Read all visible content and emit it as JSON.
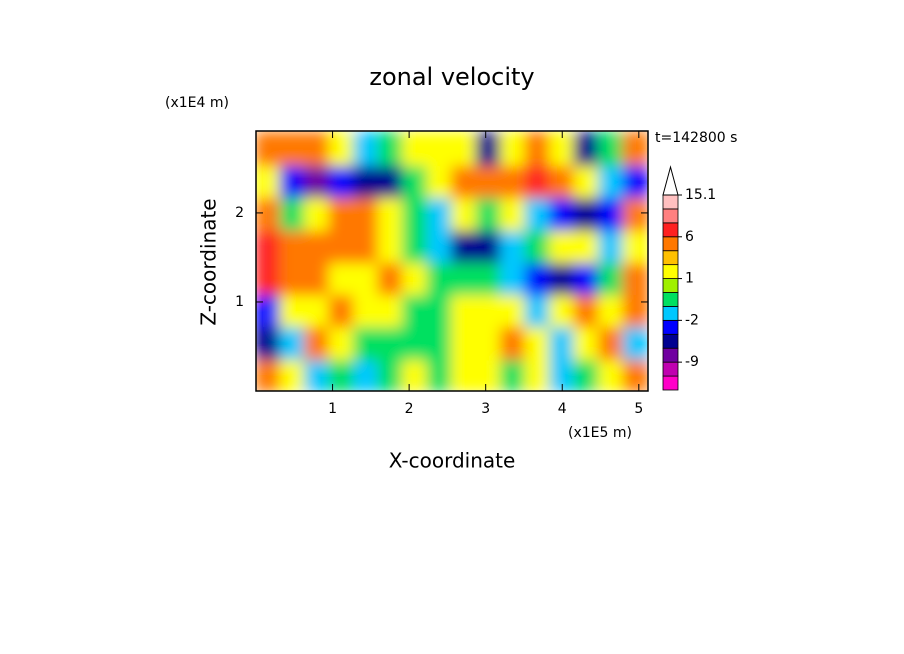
{
  "chart_data": {
    "type": "contour",
    "title": "zonal velocity",
    "x_label": "X-coordinate",
    "y_label": "Z-coordinate",
    "x_unit": "(x1E5 m)",
    "y_unit": "(x1E4 m)",
    "time_label": "t=142800 s",
    "xlim": [
      0,
      5.12
    ],
    "ylim": [
      0,
      2.92
    ],
    "xticks": [
      1,
      2,
      3,
      4,
      5
    ],
    "yticks": [
      1,
      2
    ],
    "x": [
      0.16,
      0.48,
      0.8,
      1.12,
      1.44,
      1.76,
      2.08,
      2.4,
      2.72,
      3.04,
      3.36,
      3.68,
      4.0,
      4.32,
      4.64,
      4.96
    ],
    "z": [
      0.18,
      0.54,
      0.91,
      1.27,
      1.63,
      1.99,
      2.36,
      2.72
    ],
    "values": [
      [
        5,
        1.5,
        -1.5,
        -0.5,
        -1.5,
        -0.5,
        1.5,
        -0.5,
        1.5,
        1.5,
        -0.5,
        1.5,
        -1.5,
        -0.5,
        1.5,
        5
      ],
      [
        -5,
        -1.5,
        5,
        1.5,
        -0.5,
        -0.5,
        -0.5,
        -0.5,
        1.5,
        1.5,
        5,
        1.5,
        -1.5,
        1.5,
        5,
        -1.5
      ],
      [
        -3,
        1.5,
        1.5,
        5,
        1.5,
        1.5,
        -0.5,
        -0.5,
        1.5,
        1.5,
        1.5,
        -1.5,
        1.5,
        5,
        1.5,
        5
      ],
      [
        7,
        5,
        5,
        1.5,
        1.5,
        5,
        1.5,
        -0.5,
        -0.5,
        -0.5,
        -1.5,
        -3,
        -5,
        -3,
        -0.5,
        5
      ],
      [
        7,
        5,
        5,
        5,
        5,
        1.5,
        -0.5,
        -1.5,
        -5,
        -5,
        -1.5,
        -0.5,
        1.5,
        1.5,
        -1.5,
        1.5
      ],
      [
        5,
        -0.5,
        1.5,
        5,
        5,
        1.5,
        -0.5,
        -1.5,
        1.5,
        -0.5,
        1.5,
        -1.5,
        -3,
        -5,
        -3,
        5
      ],
      [
        1.5,
        -3,
        -7,
        -3,
        -5,
        -5,
        -0.5,
        1.5,
        5,
        5,
        5,
        7,
        5,
        1.5,
        -1.5,
        -3
      ],
      [
        5,
        5,
        5,
        1.5,
        -1.5,
        -0.5,
        1.5,
        1.5,
        1.5,
        -5,
        1.5,
        5,
        1.5,
        -5,
        -0.5,
        5
      ]
    ],
    "colorbar": {
      "levels": [
        -15,
        -12,
        -9,
        -6,
        -4,
        -2,
        -1,
        0,
        1,
        2,
        4,
        6,
        9,
        12,
        15.1
      ],
      "colors": [
        "#ff00c8",
        "#c000b0",
        "#7000a0",
        "#000090",
        "#0000ff",
        "#00c8ff",
        "#00e060",
        "#a0f000",
        "#ffff00",
        "#ffc000",
        "#ff7800",
        "#ff2020",
        "#ff8080",
        "#ffc0c0"
      ],
      "ticks": [
        15.1,
        6,
        1,
        -2,
        -9
      ]
    }
  }
}
